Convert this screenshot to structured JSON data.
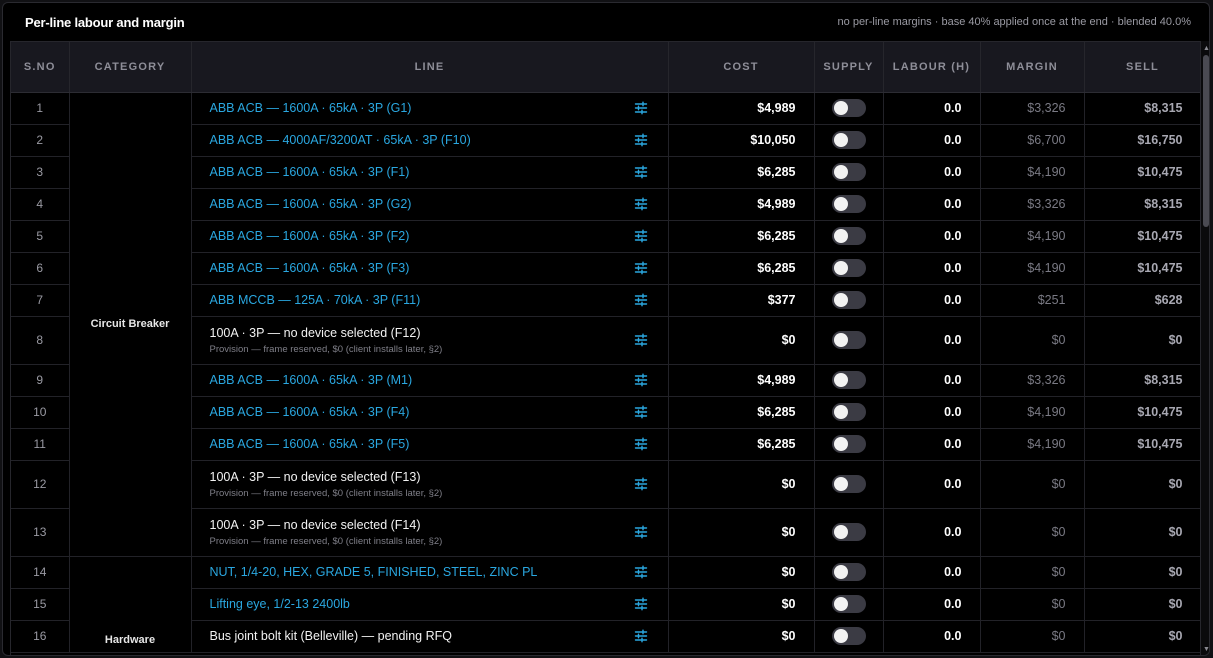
{
  "panel": {
    "title": "Per-line labour and margin",
    "note": "no per-line margins · base 40% applied once at the end · blended 40.0%"
  },
  "columns": {
    "sno": "S.NO",
    "category": "CATEGORY",
    "line": "LINE",
    "cost": "COST",
    "supply": "SUPPLY",
    "labour": "LABOUR (H)",
    "margin": "MARGIN",
    "sell": "SELL"
  },
  "categories": [
    {
      "name": "Circuit Breaker",
      "rows": 13
    },
    {
      "name": "Hardware",
      "rows": 3
    }
  ],
  "rows": [
    {
      "sno": "1",
      "line": "ABB ACB — 1600A · 65kA · 3P (G1)",
      "linked": true,
      "sub": "",
      "cost": "$4,989",
      "supply": false,
      "labour": "0.0",
      "margin": "$3,326",
      "sell": "$8,315"
    },
    {
      "sno": "2",
      "line": "ABB ACB — 4000AF/3200AT · 65kA · 3P (F10)",
      "linked": true,
      "sub": "",
      "cost": "$10,050",
      "supply": false,
      "labour": "0.0",
      "margin": "$6,700",
      "sell": "$16,750"
    },
    {
      "sno": "3",
      "line": "ABB ACB — 1600A · 65kA · 3P (F1)",
      "linked": true,
      "sub": "",
      "cost": "$6,285",
      "supply": false,
      "labour": "0.0",
      "margin": "$4,190",
      "sell": "$10,475"
    },
    {
      "sno": "4",
      "line": "ABB ACB — 1600A · 65kA · 3P (G2)",
      "linked": true,
      "sub": "",
      "cost": "$4,989",
      "supply": false,
      "labour": "0.0",
      "margin": "$3,326",
      "sell": "$8,315"
    },
    {
      "sno": "5",
      "line": "ABB ACB — 1600A · 65kA · 3P (F2)",
      "linked": true,
      "sub": "",
      "cost": "$6,285",
      "supply": false,
      "labour": "0.0",
      "margin": "$4,190",
      "sell": "$10,475"
    },
    {
      "sno": "6",
      "line": "ABB ACB — 1600A · 65kA · 3P (F3)",
      "linked": true,
      "sub": "",
      "cost": "$6,285",
      "supply": false,
      "labour": "0.0",
      "margin": "$4,190",
      "sell": "$10,475"
    },
    {
      "sno": "7",
      "line": "ABB MCCB — 125A · 70kA · 3P (F11)",
      "linked": true,
      "sub": "",
      "cost": "$377",
      "supply": false,
      "labour": "0.0",
      "margin": "$251",
      "sell": "$628"
    },
    {
      "sno": "8",
      "line": "100A · 3P — no device selected (F12)",
      "linked": false,
      "sub": "Provision — frame reserved, $0 (client installs later, §2)",
      "cost": "$0",
      "supply": false,
      "labour": "0.0",
      "margin": "$0",
      "sell": "$0"
    },
    {
      "sno": "9",
      "line": "ABB ACB — 1600A · 65kA · 3P (M1)",
      "linked": true,
      "sub": "",
      "cost": "$4,989",
      "supply": false,
      "labour": "0.0",
      "margin": "$3,326",
      "sell": "$8,315"
    },
    {
      "sno": "10",
      "line": "ABB ACB — 1600A · 65kA · 3P (F4)",
      "linked": true,
      "sub": "",
      "cost": "$6,285",
      "supply": false,
      "labour": "0.0",
      "margin": "$4,190",
      "sell": "$10,475"
    },
    {
      "sno": "11",
      "line": "ABB ACB — 1600A · 65kA · 3P (F5)",
      "linked": true,
      "sub": "",
      "cost": "$6,285",
      "supply": false,
      "labour": "0.0",
      "margin": "$4,190",
      "sell": "$10,475"
    },
    {
      "sno": "12",
      "line": "100A · 3P — no device selected (F13)",
      "linked": false,
      "sub": "Provision — frame reserved, $0 (client installs later, §2)",
      "cost": "$0",
      "supply": false,
      "labour": "0.0",
      "margin": "$0",
      "sell": "$0"
    },
    {
      "sno": "13",
      "line": "100A · 3P — no device selected (F14)",
      "linked": false,
      "sub": "Provision — frame reserved, $0 (client installs later, §2)",
      "cost": "$0",
      "supply": false,
      "labour": "0.0",
      "margin": "$0",
      "sell": "$0"
    },
    {
      "sno": "14",
      "line": "NUT, 1/4-20, HEX, GRADE 5, FINISHED, STEEL, ZINC PL",
      "linked": true,
      "sub": "",
      "cost": "$0",
      "supply": false,
      "labour": "0.0",
      "margin": "$0",
      "sell": "$0"
    },
    {
      "sno": "15",
      "line": "Lifting eye, 1/2-13 2400lb",
      "linked": true,
      "sub": "",
      "cost": "$0",
      "supply": false,
      "labour": "0.0",
      "margin": "$0",
      "sell": "$0"
    },
    {
      "sno": "16",
      "line": "Bus joint bolt kit (Belleville) — pending RFQ",
      "linked": false,
      "sub": "",
      "cost": "$0",
      "supply": false,
      "labour": "0.0",
      "margin": "$0",
      "sell": "$0"
    }
  ],
  "icons": {
    "line_action": "tune-sliders-icon",
    "scroll_up": "scroll-up-arrow-icon",
    "scroll_down": "scroll-down-arrow-icon"
  },
  "colors": {
    "link": "#2aa7e0",
    "background": "#000000",
    "header_bg": "#18181f"
  }
}
